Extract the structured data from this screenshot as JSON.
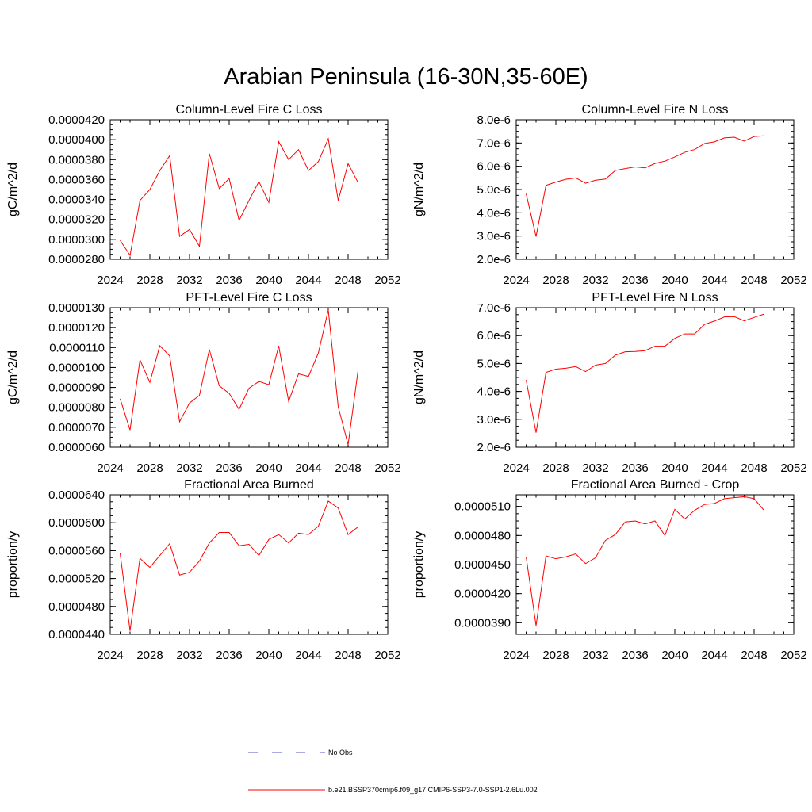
{
  "title": "Arabian Peninsula (16-30N,35-60E)",
  "legend": {
    "entries": [
      {
        "label": "No Obs",
        "color": "#5555cc",
        "style": "dashed"
      },
      {
        "label": "b.e21.BSSP370cmip6.f09_g17.CMIP6-SSP3-7.0-SSP1-2.6Lu.002",
        "color": "#ff0000",
        "style": "solid"
      }
    ]
  },
  "chart_data": [
    {
      "type": "line",
      "title": "Column-Level Fire C Loss",
      "ylabel": "gC/m^2/d",
      "xlabel": "",
      "xlim": [
        2024,
        2052
      ],
      "ylim": [
        2.8e-05,
        4.2e-05
      ],
      "xticks": [
        "2024",
        "2028",
        "2032",
        "2036",
        "2040",
        "2044",
        "2048",
        "2052"
      ],
      "yticks": [
        "0.0000280",
        "0.0000300",
        "0.0000320",
        "0.0000340",
        "0.0000360",
        "0.0000380",
        "0.0000400",
        "0.0000420"
      ],
      "series": [
        {
          "color": "#ff0000",
          "x": [
            2025,
            2026,
            2027,
            2028,
            2029,
            2030,
            2031,
            2032,
            2033,
            2034,
            2035,
            2036,
            2037,
            2038,
            2039,
            2040,
            2041,
            2042,
            2043,
            2044,
            2045,
            2046,
            2047,
            2048,
            2049
          ],
          "values": [
            2.99e-05,
            2.84e-05,
            3.39e-05,
            3.5e-05,
            3.69e-05,
            3.84e-05,
            3.03e-05,
            3.1e-05,
            2.93e-05,
            3.86e-05,
            3.51e-05,
            3.61e-05,
            3.19e-05,
            3.39e-05,
            3.58e-05,
            3.37e-05,
            3.98e-05,
            3.8e-05,
            3.9e-05,
            3.69e-05,
            3.78e-05,
            4.01e-05,
            3.39e-05,
            3.76e-05,
            3.57e-05
          ]
        }
      ]
    },
    {
      "type": "line",
      "title": "Column-Level Fire N Loss",
      "ylabel": "gN/m^2/d",
      "xlabel": "",
      "xlim": [
        2024,
        2052
      ],
      "ylim": [
        2e-06,
        8e-06
      ],
      "xticks": [
        "2024",
        "2028",
        "2032",
        "2036",
        "2040",
        "2044",
        "2048",
        "2052"
      ],
      "yticks": [
        "2.0e-6",
        "3.0e-6",
        "4.0e-6",
        "5.0e-6",
        "6.0e-6",
        "7.0e-6",
        "8.0e-6"
      ],
      "series": [
        {
          "color": "#ff0000",
          "x": [
            2025,
            2026,
            2027,
            2028,
            2029,
            2030,
            2031,
            2032,
            2033,
            2034,
            2035,
            2036,
            2037,
            2038,
            2039,
            2040,
            2041,
            2042,
            2043,
            2044,
            2045,
            2046,
            2047,
            2048,
            2049
          ],
          "values": [
            4.82e-06,
            2.98e-06,
            5.18e-06,
            5.32e-06,
            5.44e-06,
            5.5e-06,
            5.27e-06,
            5.4e-06,
            5.45e-06,
            5.82e-06,
            5.9e-06,
            5.97e-06,
            5.93e-06,
            6.12e-06,
            6.22e-06,
            6.4e-06,
            6.6e-06,
            6.72e-06,
            6.98e-06,
            7.05e-06,
            7.22e-06,
            7.25e-06,
            7.08e-06,
            7.28e-06,
            7.31e-06
          ]
        }
      ]
    },
    {
      "type": "line",
      "title": "PFT-Level Fire C Loss",
      "ylabel": "gC/m^2/d",
      "xlabel": "",
      "xlim": [
        2024,
        2052
      ],
      "ylim": [
        6e-06,
        1.3e-05
      ],
      "xticks": [
        "2024",
        "2028",
        "2032",
        "2036",
        "2040",
        "2044",
        "2048",
        "2052"
      ],
      "yticks": [
        "0.0000060",
        "0.0000070",
        "0.0000080",
        "0.0000090",
        "0.0000100",
        "0.0000110",
        "0.0000120",
        "0.0000130"
      ],
      "series": [
        {
          "color": "#ff0000",
          "x": [
            2025,
            2026,
            2027,
            2028,
            2029,
            2030,
            2031,
            2032,
            2033,
            2034,
            2035,
            2036,
            2037,
            2038,
            2039,
            2040,
            2041,
            2042,
            2043,
            2044,
            2045,
            2046,
            2047,
            2048,
            2049
          ],
          "values": [
            8.43e-06,
            6.86e-06,
            1.038e-05,
            9.25e-06,
            1.109e-05,
            1.058e-05,
            7.28e-06,
            8.22e-06,
            8.6e-06,
            1.09e-05,
            9.08e-06,
            8.7e-06,
            7.9e-06,
            8.96e-06,
            9.3e-06,
            9.14e-06,
            1.108e-05,
            8.3e-06,
            9.68e-06,
            9.55e-06,
            1.073e-05,
            1.289e-05,
            8.03e-06,
            6.13e-06,
            9.83e-06
          ]
        }
      ]
    },
    {
      "type": "line",
      "title": "PFT-Level Fire N Loss",
      "ylabel": "gN/m^2/d",
      "xlabel": "",
      "xlim": [
        2024,
        2052
      ],
      "ylim": [
        2e-06,
        7e-06
      ],
      "xticks": [
        "2024",
        "2028",
        "2032",
        "2036",
        "2040",
        "2044",
        "2048",
        "2052"
      ],
      "yticks": [
        "2.0e-6",
        "3.0e-6",
        "4.0e-6",
        "5.0e-6",
        "6.0e-6",
        "7.0e-6"
      ],
      "series": [
        {
          "color": "#ff0000",
          "x": [
            2025,
            2026,
            2027,
            2028,
            2029,
            2030,
            2031,
            2032,
            2033,
            2034,
            2035,
            2036,
            2037,
            2038,
            2039,
            2040,
            2041,
            2042,
            2043,
            2044,
            2045,
            2046,
            2047,
            2048,
            2049
          ],
          "values": [
            4.41e-06,
            2.52e-06,
            4.68e-06,
            4.8e-06,
            4.83e-06,
            4.89e-06,
            4.71e-06,
            4.94e-06,
            5e-06,
            5.3e-06,
            5.42e-06,
            5.43e-06,
            5.46e-06,
            5.62e-06,
            5.62e-06,
            5.9e-06,
            6.06e-06,
            6.06e-06,
            6.4e-06,
            6.52e-06,
            6.67e-06,
            6.68e-06,
            6.53e-06,
            6.65e-06,
            6.77e-06
          ]
        }
      ]
    },
    {
      "type": "line",
      "title": "Fractional Area Burned",
      "ylabel": "proportion/y",
      "xlabel": "",
      "xlim": [
        2024,
        2052
      ],
      "ylim": [
        4.4e-05,
        6.4e-05
      ],
      "xticks": [
        "2024",
        "2028",
        "2032",
        "2036",
        "2040",
        "2044",
        "2048",
        "2052"
      ],
      "yticks": [
        "0.0000440",
        "0.0000480",
        "0.0000520",
        "0.0000560",
        "0.0000600",
        "0.0000640"
      ],
      "series": [
        {
          "color": "#ff0000",
          "x": [
            2025,
            2026,
            2027,
            2028,
            2029,
            2030,
            2031,
            2032,
            2033,
            2034,
            2035,
            2036,
            2037,
            2038,
            2039,
            2040,
            2041,
            2042,
            2043,
            2044,
            2045,
            2046,
            2047,
            2048,
            2049
          ],
          "values": [
            5.56e-05,
            4.45e-05,
            5.49e-05,
            5.36e-05,
            5.53e-05,
            5.7e-05,
            5.25e-05,
            5.29e-05,
            5.45e-05,
            5.71e-05,
            5.86e-05,
            5.86e-05,
            5.67e-05,
            5.69e-05,
            5.53e-05,
            5.76e-05,
            5.83e-05,
            5.71e-05,
            5.85e-05,
            5.83e-05,
            5.95e-05,
            6.31e-05,
            6.21e-05,
            5.83e-05,
            5.94e-05
          ]
        }
      ]
    },
    {
      "type": "line",
      "title": "Fractional Area Burned - Crop",
      "ylabel": "proportion/y",
      "xlabel": "",
      "xlim": [
        2024,
        2052
      ],
      "ylim": [
        3.78e-05,
        5.22e-05
      ],
      "xticks": [
        "2024",
        "2028",
        "2032",
        "2036",
        "2040",
        "2044",
        "2048",
        "2052"
      ],
      "yticks": [
        "0.0000390",
        "0.0000420",
        "0.0000450",
        "0.0000480",
        "0.0000510"
      ],
      "series": [
        {
          "color": "#ff0000",
          "x": [
            2025,
            2026,
            2027,
            2028,
            2029,
            2030,
            2031,
            2032,
            2033,
            2034,
            2035,
            2036,
            2037,
            2038,
            2039,
            2040,
            2041,
            2042,
            2043,
            2044,
            2045,
            2046,
            2047,
            2048,
            2049
          ],
          "values": [
            4.58e-05,
            3.87e-05,
            4.59e-05,
            4.56e-05,
            4.58e-05,
            4.61e-05,
            4.51e-05,
            4.57e-05,
            4.75e-05,
            4.81e-05,
            4.94e-05,
            4.95e-05,
            4.92e-05,
            4.95e-05,
            4.8e-05,
            5.07e-05,
            4.97e-05,
            5.06e-05,
            5.12e-05,
            5.13e-05,
            5.18e-05,
            5.19e-05,
            5.2e-05,
            5.18e-05,
            5.06e-05
          ]
        }
      ]
    }
  ]
}
